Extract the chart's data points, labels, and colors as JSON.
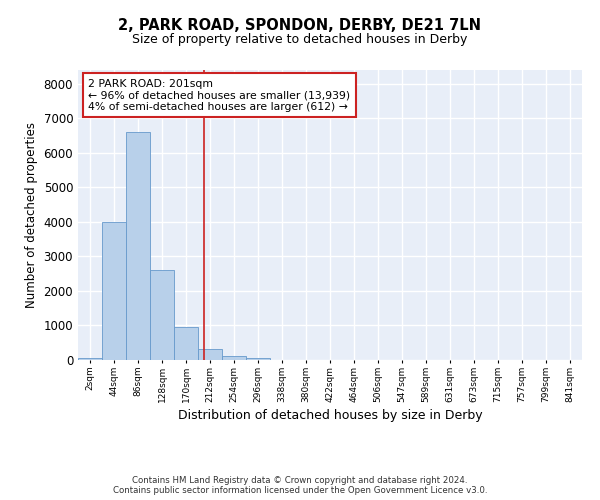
{
  "title_line1": "2, PARK ROAD, SPONDON, DERBY, DE21 7LN",
  "title_line2": "Size of property relative to detached houses in Derby",
  "xlabel": "Distribution of detached houses by size in Derby",
  "ylabel": "Number of detached properties",
  "bar_color": "#b8d0ea",
  "bar_edge_color": "#6699cc",
  "background_color": "#e8eef8",
  "grid_color": "#ffffff",
  "bin_labels": [
    "2sqm",
    "44sqm",
    "86sqm",
    "128sqm",
    "170sqm",
    "212sqm",
    "254sqm",
    "296sqm",
    "338sqm",
    "380sqm",
    "422sqm",
    "464sqm",
    "506sqm",
    "547sqm",
    "589sqm",
    "631sqm",
    "673sqm",
    "715sqm",
    "757sqm",
    "799sqm",
    "841sqm"
  ],
  "bin_values": [
    55,
    4000,
    6600,
    2600,
    950,
    330,
    110,
    65,
    0,
    0,
    0,
    0,
    0,
    0,
    0,
    0,
    0,
    0,
    0,
    0,
    0
  ],
  "vline_color": "#cc2222",
  "annotation_text": "2 PARK ROAD: 201sqm\n← 96% of detached houses are smaller (13,939)\n4% of semi-detached houses are larger (612) →",
  "annotation_box_color": "#ffffff",
  "annotation_box_edge": "#cc2222",
  "ylim": [
    0,
    8400
  ],
  "yticks": [
    0,
    1000,
    2000,
    3000,
    4000,
    5000,
    6000,
    7000,
    8000
  ],
  "footer_line1": "Contains HM Land Registry data © Crown copyright and database right 2024.",
  "footer_line2": "Contains public sector information licensed under the Open Government Licence v3.0.",
  "vline_position": 4.74
}
